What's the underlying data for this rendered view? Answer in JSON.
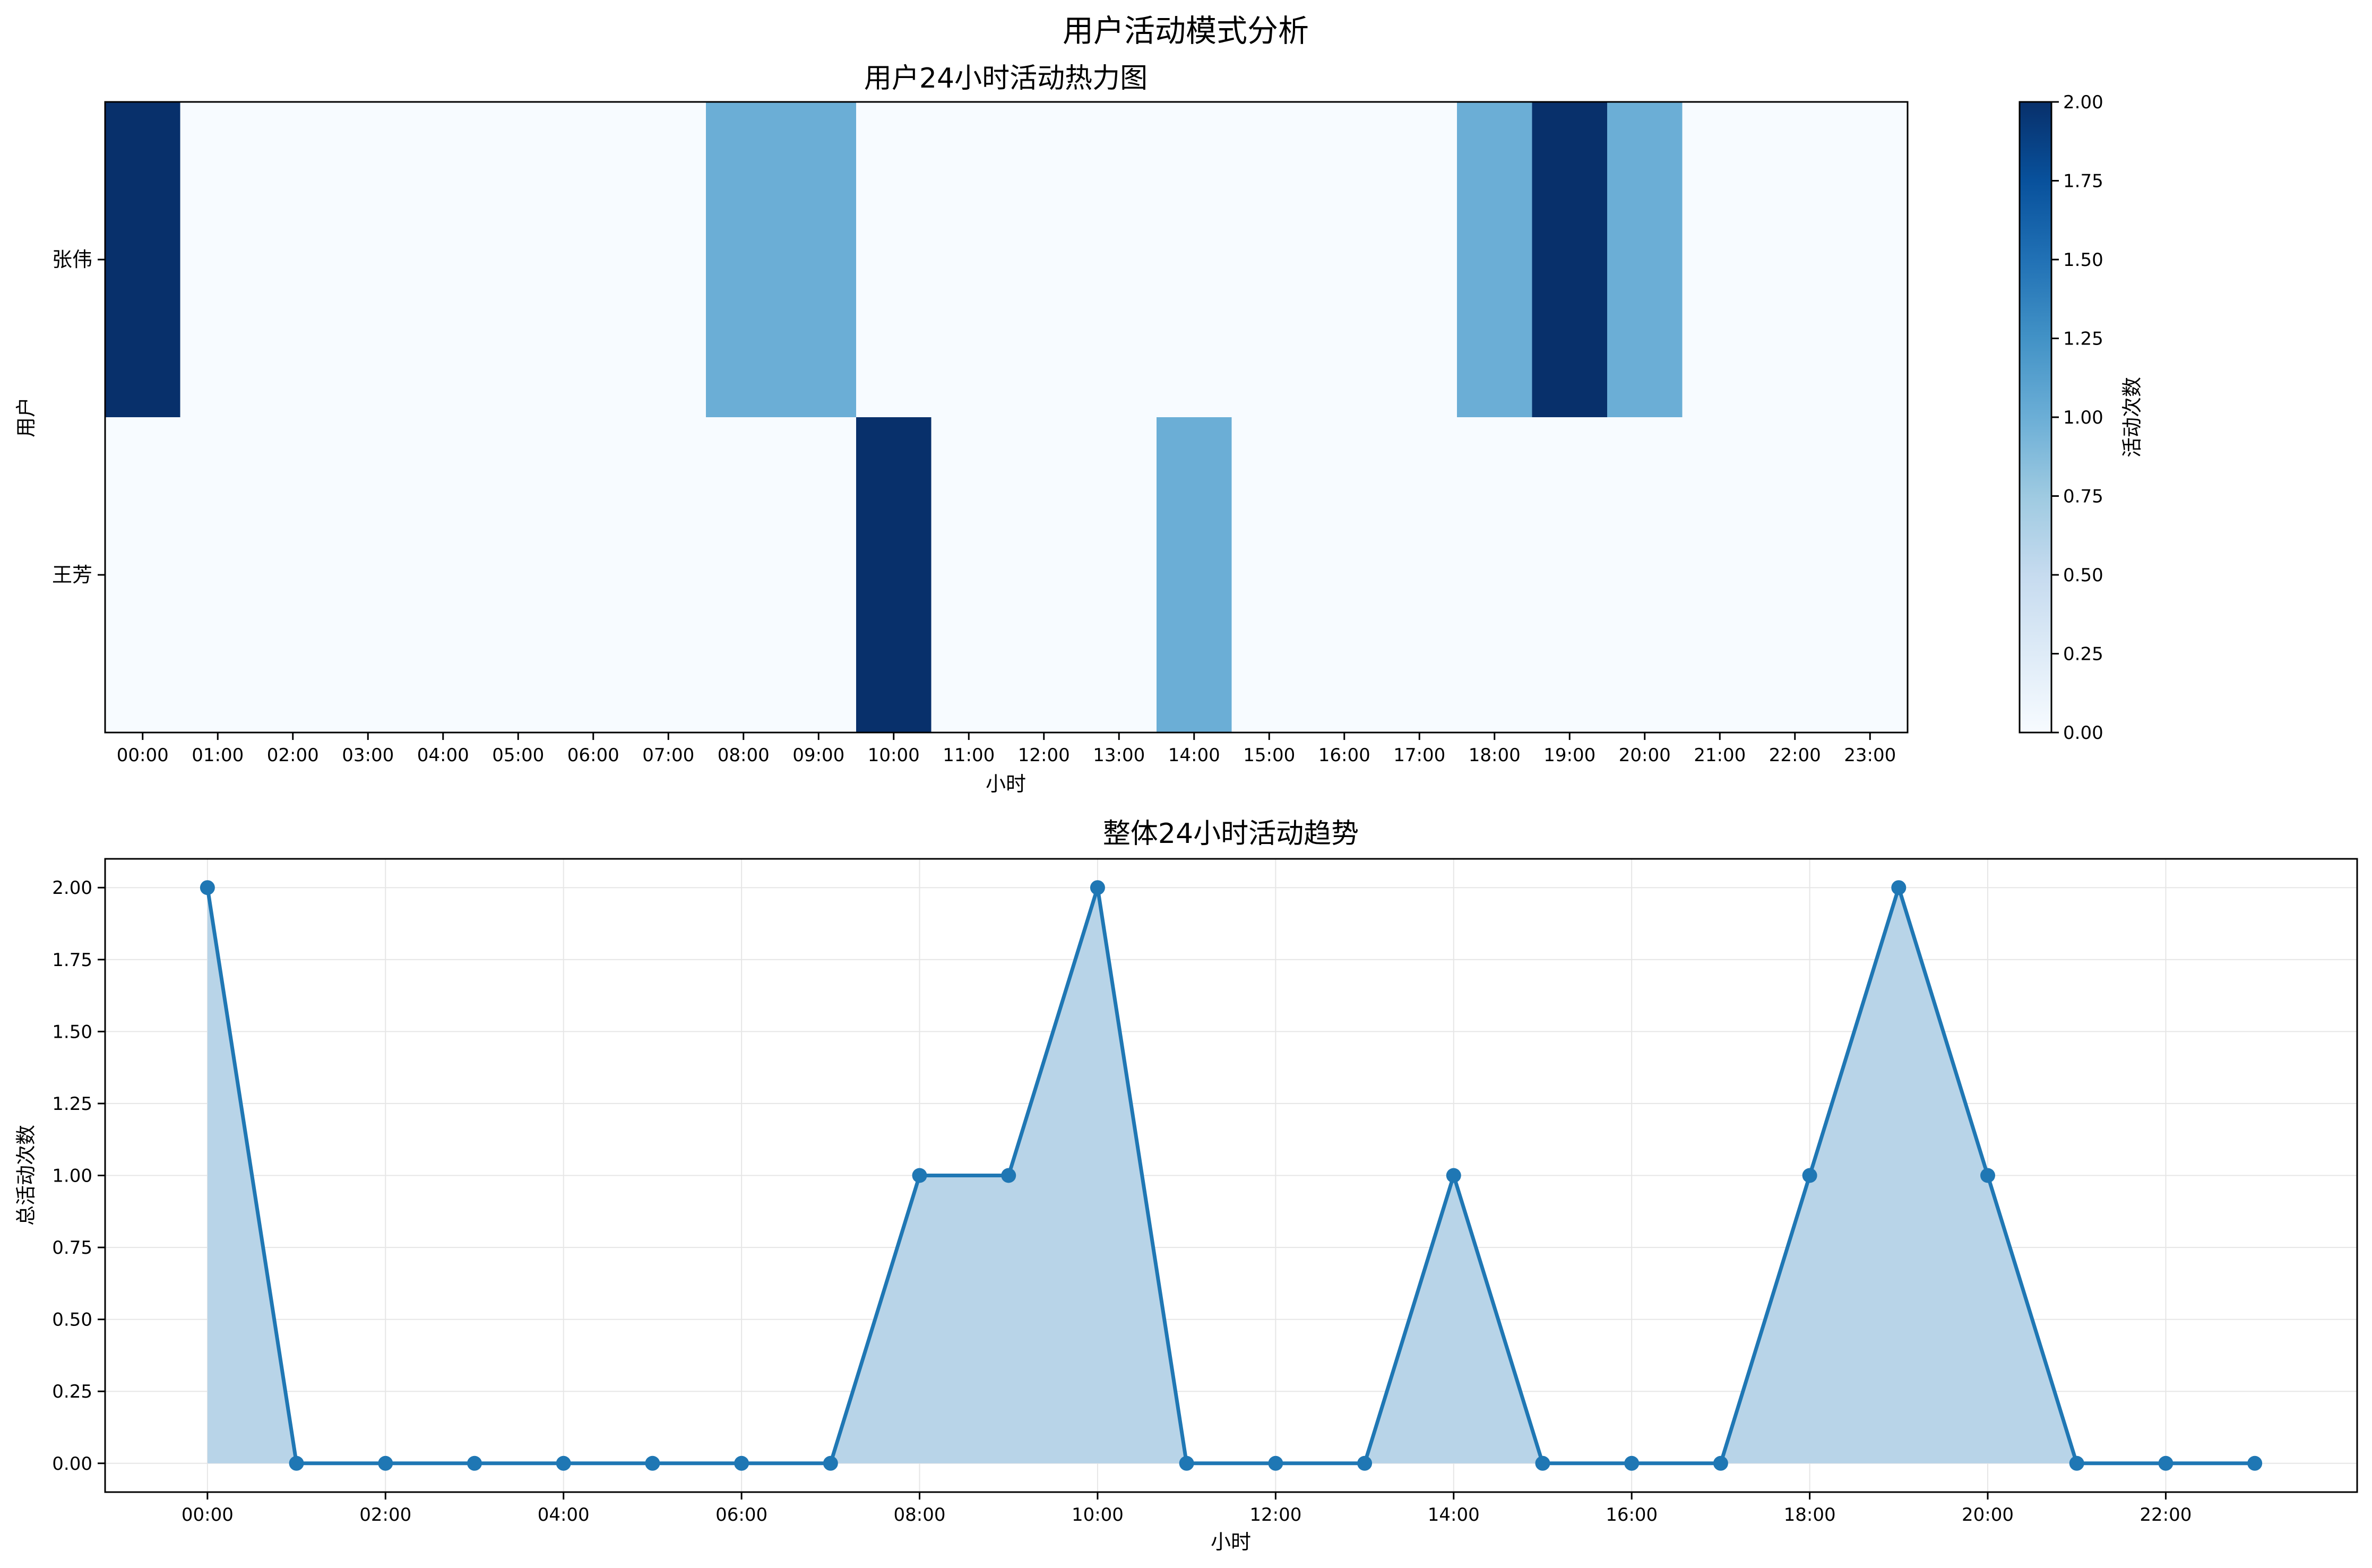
{
  "figure_title": "用户活动模式分析",
  "colors": {
    "line": "#1f77b4",
    "fill": "#b8d4e8",
    "heat_0": "#f7fbff",
    "heat_1": "#6baed6",
    "heat_2": "#08306b"
  },
  "chart_data": [
    {
      "type": "heatmap",
      "title": "用户24小时活动热力图",
      "xlabel": "小时",
      "ylabel": "用户",
      "x_categories": [
        "00:00",
        "01:00",
        "02:00",
        "03:00",
        "04:00",
        "05:00",
        "06:00",
        "07:00",
        "08:00",
        "09:00",
        "10:00",
        "11:00",
        "12:00",
        "13:00",
        "14:00",
        "15:00",
        "16:00",
        "17:00",
        "18:00",
        "19:00",
        "20:00",
        "21:00",
        "22:00",
        "23:00"
      ],
      "y_categories": [
        "张伟",
        "王芳"
      ],
      "values": [
        [
          2,
          0,
          0,
          0,
          0,
          0,
          0,
          0,
          1,
          1,
          0,
          0,
          0,
          0,
          0,
          0,
          0,
          0,
          1,
          2,
          1,
          0,
          0,
          0
        ],
        [
          0,
          0,
          0,
          0,
          0,
          0,
          0,
          0,
          0,
          0,
          2,
          0,
          0,
          0,
          1,
          0,
          0,
          0,
          0,
          0,
          0,
          0,
          0,
          0
        ]
      ],
      "colorbar": {
        "label": "活动次数",
        "range": [
          0,
          2
        ],
        "ticks": [
          "0.00",
          "0.25",
          "0.50",
          "0.75",
          "1.00",
          "1.25",
          "1.50",
          "1.75",
          "2.00"
        ],
        "colormap": "Blues"
      }
    },
    {
      "type": "area",
      "title": "整体24小时活动趋势",
      "xlabel": "小时",
      "ylabel": "总活动次数",
      "x": [
        0,
        1,
        2,
        3,
        4,
        5,
        6,
        7,
        8,
        9,
        10,
        11,
        12,
        13,
        14,
        15,
        16,
        17,
        18,
        19,
        20,
        21,
        22,
        23
      ],
      "values": [
        2,
        0,
        0,
        0,
        0,
        0,
        0,
        0,
        1,
        1,
        2,
        0,
        0,
        0,
        1,
        0,
        0,
        0,
        1,
        2,
        1,
        0,
        0,
        0
      ],
      "x_tick_labels": [
        "00:00",
        "02:00",
        "04:00",
        "06:00",
        "08:00",
        "10:00",
        "12:00",
        "14:00",
        "16:00",
        "18:00",
        "20:00",
        "22:00"
      ],
      "x_tick_values": [
        0,
        2,
        4,
        6,
        8,
        10,
        12,
        14,
        16,
        18,
        20,
        22
      ],
      "xlim": [
        -1.15,
        24.15
      ],
      "ylim": [
        -0.1,
        2.1
      ],
      "y_ticks": [
        "0.00",
        "0.25",
        "0.50",
        "0.75",
        "1.00",
        "1.25",
        "1.50",
        "1.75",
        "2.00"
      ],
      "grid": true,
      "markers": true
    }
  ]
}
